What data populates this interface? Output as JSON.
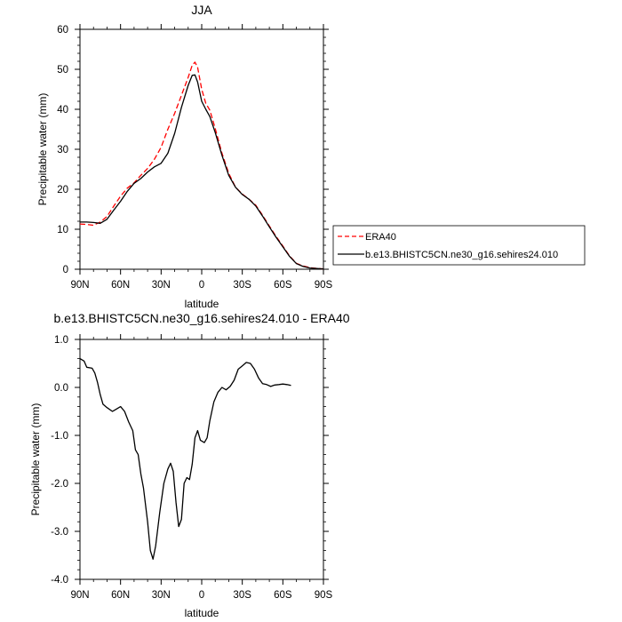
{
  "chart_data": [
    {
      "type": "line",
      "title": "JJA",
      "xlabel": "latitude",
      "ylabel": "Precipitable water (mm)",
      "xlim": [
        90,
        -90
      ],
      "ylim": [
        0,
        60
      ],
      "xticks": [
        90,
        60,
        30,
        0,
        -30,
        -60,
        -90
      ],
      "xtick_labels": [
        "90N",
        "60N",
        "30N",
        "0",
        "30S",
        "60S",
        "90S"
      ],
      "yticks": [
        0,
        10,
        20,
        30,
        40,
        50,
        60
      ],
      "ytick_labels": [
        "0",
        "10",
        "20",
        "30",
        "40",
        "50",
        "60"
      ],
      "grid": false,
      "legend_position": "outside-right",
      "series": [
        {
          "name": "ERA40",
          "color": "#ff0000",
          "dash": "dashed",
          "points": [
            [
              90,
              11.3
            ],
            [
              85,
              11.2
            ],
            [
              80,
              11.0
            ],
            [
              75,
              11.8
            ],
            [
              70,
              13.2
            ],
            [
              65,
              15.8
            ],
            [
              60,
              18.3
            ],
            [
              55,
              20.3
            ],
            [
              50,
              21.6
            ],
            [
              45,
              23.5
            ],
            [
              40,
              25.2
            ],
            [
              35,
              27.5
            ],
            [
              30,
              30.5
            ],
            [
              25,
              35.0
            ],
            [
              20,
              39.0
            ],
            [
              15,
              43.5
            ],
            [
              10,
              48.0
            ],
            [
              7,
              51.0
            ],
            [
              5,
              51.8
            ],
            [
              3,
              50.5
            ],
            [
              0,
              45.0
            ],
            [
              -3,
              41.5
            ],
            [
              -6,
              39.8
            ],
            [
              -10,
              35.2
            ],
            [
              -15,
              29.0
            ],
            [
              -20,
              24.0
            ],
            [
              -25,
              20.5
            ],
            [
              -30,
              18.8
            ],
            [
              -35,
              17.5
            ],
            [
              -40,
              16.0
            ],
            [
              -45,
              13.5
            ],
            [
              -50,
              10.8
            ],
            [
              -55,
              8.2
            ],
            [
              -60,
              5.8
            ],
            [
              -65,
              3.3
            ],
            [
              -70,
              1.5
            ],
            [
              -75,
              0.8
            ],
            [
              -80,
              0.4
            ],
            [
              -85,
              0.2
            ],
            [
              -90,
              0.1
            ]
          ]
        },
        {
          "name": "b.e13.BHISTC5CN.ne30_g16.sehires24.010",
          "color": "#000000",
          "dash": "solid",
          "points": [
            [
              90,
              11.8
            ],
            [
              85,
              11.8
            ],
            [
              80,
              11.7
            ],
            [
              75,
              11.5
            ],
            [
              70,
              12.5
            ],
            [
              65,
              14.8
            ],
            [
              60,
              17.0
            ],
            [
              55,
              19.5
            ],
            [
              50,
              21.5
            ],
            [
              45,
              22.7
            ],
            [
              40,
              24.3
            ],
            [
              35,
              25.6
            ],
            [
              30,
              26.5
            ],
            [
              25,
              29.0
            ],
            [
              20,
              34.0
            ],
            [
              15,
              40.5
            ],
            [
              10,
              46.0
            ],
            [
              7,
              48.5
            ],
            [
              5,
              48.6
            ],
            [
              3,
              46.8
            ],
            [
              0,
              42.0
            ],
            [
              -3,
              40.0
            ],
            [
              -6,
              38.2
            ],
            [
              -10,
              34.2
            ],
            [
              -15,
              28.5
            ],
            [
              -20,
              23.5
            ],
            [
              -25,
              20.5
            ],
            [
              -30,
              18.7
            ],
            [
              -35,
              17.5
            ],
            [
              -40,
              15.8
            ],
            [
              -45,
              13.3
            ],
            [
              -50,
              10.6
            ],
            [
              -55,
              8.0
            ],
            [
              -60,
              5.6
            ],
            [
              -65,
              3.2
            ],
            [
              -70,
              1.4
            ],
            [
              -75,
              0.7
            ],
            [
              -80,
              0.3
            ],
            [
              -85,
              0.2
            ],
            [
              -90,
              0.1
            ]
          ]
        }
      ]
    },
    {
      "type": "line",
      "title": "b.e13.BHISTC5CN.ne30_g16.sehires24.010 - ERA40",
      "xlabel": "latitude",
      "ylabel": "Precipitable water (mm)",
      "xlim": [
        90,
        -90
      ],
      "ylim": [
        -4.0,
        1.0
      ],
      "xticks": [
        90,
        60,
        30,
        0,
        -30,
        -60,
        -90
      ],
      "xtick_labels": [
        "90N",
        "60N",
        "30N",
        "0",
        "30S",
        "60S",
        "90S"
      ],
      "yticks": [
        1.0,
        0.0,
        -1.0,
        -2.0,
        -3.0,
        -4.0
      ],
      "ytick_labels": [
        "1.0",
        "0.0",
        "-1.0",
        "-2.0",
        "-3.0",
        "-4.0"
      ],
      "grid": false,
      "series": [
        {
          "color": "#000000",
          "dash": "solid",
          "points": [
            [
              90,
              0.6
            ],
            [
              87,
              0.55
            ],
            [
              85,
              0.42
            ],
            [
              81,
              0.4
            ],
            [
              79,
              0.3
            ],
            [
              77,
              0.1
            ],
            [
              75,
              -0.15
            ],
            [
              73,
              -0.35
            ],
            [
              70,
              -0.42
            ],
            [
              66,
              -0.5
            ],
            [
              63,
              -0.45
            ],
            [
              60,
              -0.4
            ],
            [
              57,
              -0.5
            ],
            [
              54,
              -0.72
            ],
            [
              51,
              -0.9
            ],
            [
              49,
              -1.3
            ],
            [
              47,
              -1.4
            ],
            [
              45,
              -1.8
            ],
            [
              43,
              -2.1
            ],
            [
              40,
              -2.8
            ],
            [
              38,
              -3.4
            ],
            [
              36,
              -3.58
            ],
            [
              34,
              -3.3
            ],
            [
              31,
              -2.6
            ],
            [
              28,
              -2.0
            ],
            [
              25,
              -1.7
            ],
            [
              23,
              -1.58
            ],
            [
              21,
              -1.75
            ],
            [
              19,
              -2.4
            ],
            [
              17,
              -2.9
            ],
            [
              15,
              -2.75
            ],
            [
              13,
              -2.0
            ],
            [
              11,
              -1.88
            ],
            [
              9,
              -1.92
            ],
            [
              7,
              -1.6
            ],
            [
              5,
              -1.05
            ],
            [
              3,
              -0.9
            ],
            [
              1,
              -1.1
            ],
            [
              -2,
              -1.15
            ],
            [
              -4,
              -1.05
            ],
            [
              -6,
              -0.7
            ],
            [
              -9,
              -0.3
            ],
            [
              -12,
              -0.1
            ],
            [
              -15,
              0.0
            ],
            [
              -18,
              -0.05
            ],
            [
              -21,
              0.02
            ],
            [
              -24,
              0.15
            ],
            [
              -27,
              0.38
            ],
            [
              -30,
              0.45
            ],
            [
              -33,
              0.52
            ],
            [
              -36,
              0.5
            ],
            [
              -39,
              0.38
            ],
            [
              -42,
              0.2
            ],
            [
              -45,
              0.08
            ],
            [
              -48,
              0.06
            ],
            [
              -51,
              0.02
            ],
            [
              -54,
              0.05
            ],
            [
              -57,
              0.06
            ],
            [
              -60,
              0.07
            ],
            [
              -63,
              0.06
            ],
            [
              -66,
              0.04
            ]
          ]
        }
      ]
    }
  ]
}
